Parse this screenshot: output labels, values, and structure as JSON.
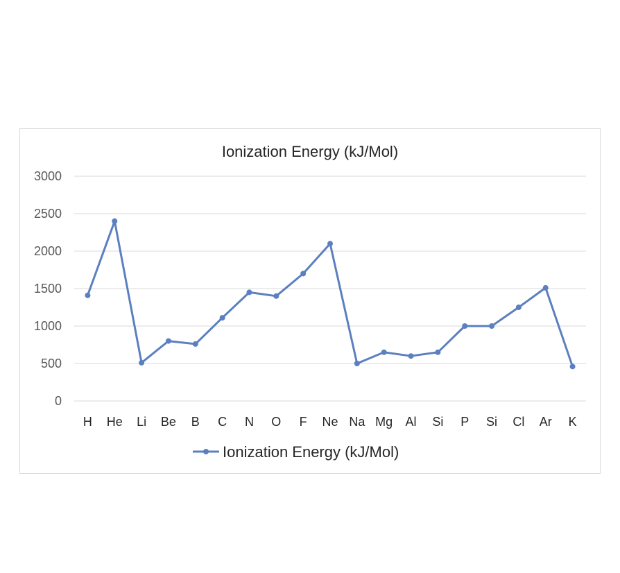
{
  "chart_data": {
    "type": "line",
    "title": "Ionization Energy (kJ/Mol)",
    "xlabel": "",
    "ylabel": "",
    "categories": [
      "H",
      "He",
      "Li",
      "Be",
      "B",
      "C",
      "N",
      "O",
      "F",
      "Ne",
      "Na",
      "Mg",
      "Al",
      "Si",
      "P",
      "Si",
      "Cl",
      "Ar",
      "K"
    ],
    "series": [
      {
        "name": "Ionization Energy (kJ/Mol)",
        "values": [
          1410,
          2400,
          510,
          800,
          760,
          1110,
          1450,
          1400,
          1700,
          2100,
          500,
          650,
          600,
          650,
          1000,
          1000,
          1250,
          1510,
          460
        ]
      }
    ],
    "ylim": [
      0,
      3000
    ],
    "yticks": [
      0,
      500,
      1000,
      1500,
      2000,
      2500,
      3000
    ],
    "grid": true,
    "legend_position": "bottom",
    "colors": {
      "line": "#5b7fbf",
      "grid": "#d9d9d9",
      "frame": "#d9d9d9"
    }
  }
}
